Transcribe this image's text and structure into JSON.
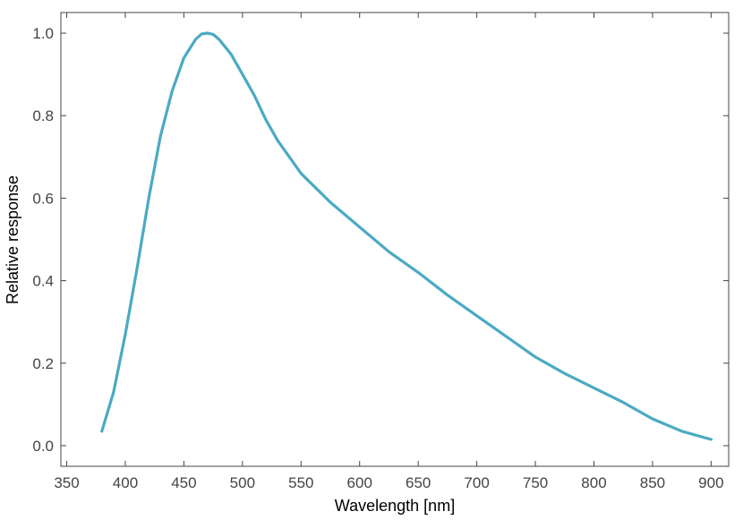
{
  "colors": {
    "line": "#4aaac3",
    "axes": "#444444",
    "background": "#ffffff"
  },
  "chart_data": {
    "type": "line",
    "title": "",
    "xlabel": "Wavelength [nm]",
    "ylabel": "Relative response",
    "xlim": [
      345,
      915
    ],
    "ylim": [
      -0.05,
      1.05
    ],
    "xticks": [
      350,
      400,
      450,
      500,
      550,
      600,
      650,
      700,
      750,
      800,
      850,
      900
    ],
    "xtick_labels": [
      "350",
      "400",
      "450",
      "500",
      "550",
      "600",
      "650",
      "700",
      "750",
      "800",
      "850",
      "900"
    ],
    "yticks": [
      0.0,
      0.2,
      0.4,
      0.6,
      0.8,
      1.0
    ],
    "ytick_labels": [
      "0.0",
      "0.2",
      "0.4",
      "0.6",
      "0.8",
      "1.0"
    ],
    "grid": false,
    "legend": false,
    "series": [
      {
        "x": [
          380,
          390,
          400,
          410,
          420,
          430,
          440,
          450,
          460,
          465,
          470,
          475,
          480,
          490,
          500,
          510,
          520,
          530,
          540,
          550,
          575,
          600,
          625,
          650,
          675,
          700,
          725,
          750,
          775,
          800,
          825,
          850,
          875,
          900
        ],
        "values": [
          0.035,
          0.13,
          0.27,
          0.43,
          0.6,
          0.75,
          0.86,
          0.94,
          0.985,
          0.998,
          1.0,
          0.997,
          0.985,
          0.95,
          0.9,
          0.85,
          0.79,
          0.74,
          0.7,
          0.66,
          0.59,
          0.53,
          0.47,
          0.42,
          0.365,
          0.315,
          0.265,
          0.215,
          0.175,
          0.14,
          0.105,
          0.065,
          0.035,
          0.015
        ]
      }
    ]
  }
}
